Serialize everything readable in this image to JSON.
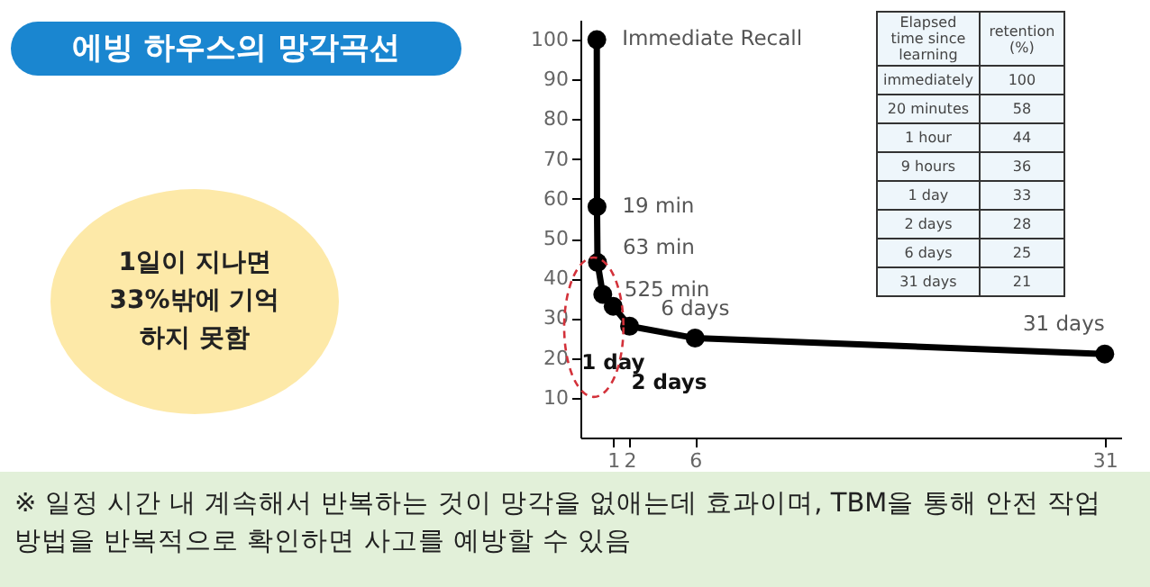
{
  "chart_data": {
    "type": "line",
    "title": "에빙 하우스의 망각곡선",
    "x": [
      0,
      0.0132,
      0.04375,
      0.3646,
      1,
      2,
      6,
      31
    ],
    "series": [
      {
        "color": "#000000",
        "values": [
          100,
          58,
          44,
          36,
          33,
          28,
          25,
          21
        ]
      }
    ],
    "value_labels": [
      "100",
      "58",
      "44",
      "36",
      "33",
      "28",
      "25",
      "21"
    ],
    "xlim": [
      -1,
      32
    ],
    "xticks": [
      1,
      2,
      6,
      31
    ],
    "ylim": [
      0,
      105
    ],
    "yticks": [
      10,
      20,
      30,
      40,
      50,
      60,
      70,
      80,
      90,
      100
    ],
    "grid": false,
    "marker": "circle",
    "line_style": "solid",
    "annotations": [
      {
        "text": "Immediate Recall",
        "x": 0,
        "y": 100
      },
      {
        "text": "19 min",
        "x": 0.0132,
        "y": 58
      },
      {
        "text": "63 min",
        "x": 0.04375,
        "y": 44
      },
      {
        "text": "525 min",
        "x": 0.3646,
        "y": 36
      },
      {
        "text": "1 day",
        "x": 1,
        "y": 33
      },
      {
        "text": "2 days",
        "x": 2,
        "y": 28
      },
      {
        "text": "6 days",
        "x": 6,
        "y": 25
      },
      {
        "text": "31 days",
        "x": 31,
        "y": 21
      },
      "Elapsed time since learning",
      "retention (%)",
      "immediately",
      "20 minutes",
      "1 hour",
      "9 hours",
      "1 day",
      "2 days",
      "6 days",
      "31 days",
      "1일이 지나면 33%밖에 기억 하지 못함",
      "※ 일정 시간 내 계속해서 반복하는 것이 망각을 없애는데 효과이며, TBM을 통해 안전 작업 방법을 반복적으로 확인하면 사고를 예방할 수 있음"
    ]
  }
}
